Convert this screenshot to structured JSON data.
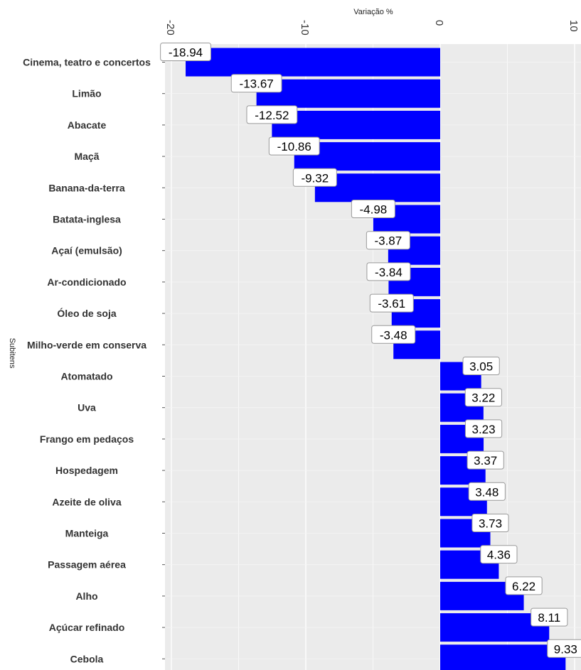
{
  "chart_data": {
    "type": "bar",
    "orientation": "horizontal",
    "xlabel": "Variação %",
    "ylabel": "Subitens",
    "xlim": [
      -20.5,
      10.5
    ],
    "xticks": [
      -20,
      -10,
      0,
      10
    ],
    "xtick_labels": [
      "-20",
      "-10",
      "0",
      "10"
    ],
    "grid": true,
    "bar_color": "#0000ff",
    "panel_color": "#ebebeb",
    "categories": [
      "Cinema, teatro e concertos",
      "Limão",
      "Abacate",
      "Maçã",
      "Banana-da-terra",
      "Batata-inglesa",
      "Açaí (emulsão)",
      "Ar-condicionado",
      "Óleo de soja",
      "Milho-verde em conserva",
      "Atomatado",
      "Uva",
      "Frango em pedaços",
      "Hospedagem",
      "Azeite de oliva",
      "Manteiga",
      "Passagem aérea",
      "Alho",
      "Açúcar refinado",
      "Cebola"
    ],
    "values": [
      -18.94,
      -13.67,
      -12.52,
      -10.86,
      -9.32,
      -4.98,
      -3.87,
      -3.84,
      -3.61,
      -3.48,
      3.05,
      3.22,
      3.23,
      3.37,
      3.48,
      3.73,
      4.36,
      6.22,
      8.11,
      9.33
    ],
    "value_labels": [
      "-18.94",
      "-13.67",
      "-12.52",
      "-10.86",
      "-9.32",
      "-4.98",
      "-3.87",
      "-3.84",
      "-3.61",
      "-3.48",
      "3.05",
      "3.22",
      "3.23",
      "3.37",
      "3.48",
      "3.73",
      "4.36",
      "6.22",
      "8.11",
      "9.33"
    ]
  }
}
